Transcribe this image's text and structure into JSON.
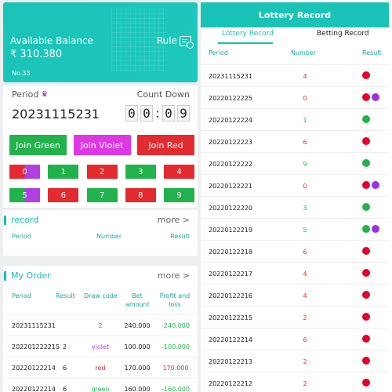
{
  "balance": {
    "title": "Available Balance",
    "amount": "₹ 310.380",
    "no": "No.33",
    "rule_label": "Rule"
  },
  "game": {
    "period_label": "Period",
    "countdown_label": "Count Down",
    "period_value": "20231115231",
    "timer": [
      "0",
      "0",
      "0",
      "9"
    ],
    "join_green": "Join Green",
    "join_violet": "Join Violet",
    "join_red": "Join Red",
    "numbers_row1": [
      "0",
      "1",
      "2",
      "3",
      "4"
    ],
    "numbers_row2": [
      "5",
      "6",
      "7",
      "8",
      "9"
    ]
  },
  "record": {
    "title": "record",
    "more": "more >",
    "headers": [
      "Period",
      "Number",
      "Result"
    ]
  },
  "my_order": {
    "title": "My Order",
    "more": "more >",
    "headers": [
      "Period",
      "Result",
      "Draw code",
      "Bet amount",
      "Profit and loss"
    ],
    "rows": [
      {
        "period": "20231115231",
        "result": "",
        "draw": "2",
        "amount": "240.000",
        "pl": "-240.000"
      },
      {
        "period": "202201222215",
        "result": "2",
        "draw": "violet",
        "amount": "100.000",
        "pl": "-100.000"
      },
      {
        "period": "20220122214",
        "result": "6",
        "draw": "red",
        "amount": "170.000",
        "pl": "170.000"
      },
      {
        "period": "20220122214",
        "result": "6",
        "draw": "green",
        "amount": "160.000",
        "pl": "-160.000"
      }
    ]
  },
  "lottery": {
    "header": "Lottery Record",
    "tab_lottery": "Lottery Record",
    "tab_betting": "Betting Record",
    "headers": [
      "Period",
      "Number",
      "Result"
    ],
    "rows": [
      {
        "period": "20231115231",
        "number": "4",
        "color": "red",
        "dots": [
          "red"
        ]
      },
      {
        "period": "20220122225",
        "number": "0",
        "color": "red",
        "dots": [
          "red",
          "violet"
        ]
      },
      {
        "period": "20220122224",
        "number": "1",
        "color": "green",
        "dots": [
          "green"
        ]
      },
      {
        "period": "20220122223",
        "number": "6",
        "color": "red",
        "dots": [
          "red"
        ]
      },
      {
        "period": "20220122222",
        "number": "9",
        "color": "green",
        "dots": [
          "green"
        ]
      },
      {
        "period": "20220122221",
        "number": "0",
        "color": "red",
        "dots": [
          "red",
          "violet"
        ]
      },
      {
        "period": "20220122220",
        "number": "3",
        "color": "green",
        "dots": [
          "green"
        ]
      },
      {
        "period": "20220122219",
        "number": "5",
        "color": "green",
        "dots": [
          "green",
          "violet"
        ]
      },
      {
        "period": "20220122218",
        "number": "6",
        "color": "red",
        "dots": [
          "red"
        ]
      },
      {
        "period": "20220122217",
        "number": "4",
        "color": "red",
        "dots": [
          "red"
        ]
      },
      {
        "period": "20220122216",
        "number": "4",
        "color": "red",
        "dots": [
          "red"
        ]
      },
      {
        "period": "20220122215",
        "number": "2",
        "color": "red",
        "dots": [
          "red"
        ]
      },
      {
        "period": "20220122214",
        "number": "6",
        "color": "red",
        "dots": [
          "red"
        ]
      },
      {
        "period": "20220122213",
        "number": "2",
        "color": "red",
        "dots": [
          "red"
        ]
      },
      {
        "period": "20220122212",
        "number": "2",
        "color": "red",
        "dots": [
          "red"
        ]
      }
    ]
  }
}
